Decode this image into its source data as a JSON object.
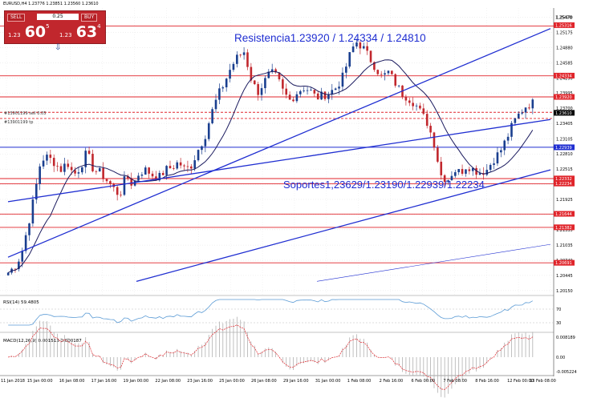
{
  "header": {
    "title": "EURUSD,H4  1.23776 1.23851 1.23560 1.23610"
  },
  "trade_panel": {
    "sell_label": "SELL",
    "buy_label": "BUY",
    "lot_value": "0.25",
    "sell_price_prefix": "1.23",
    "sell_price_big": "60",
    "sell_price_sup": "5",
    "buy_price_prefix": "1.23",
    "buy_price_big": "63",
    "buy_price_sup": "4"
  },
  "annotations": {
    "resistance": "Resistencia1.23920 / 1.24334 / 1.24810",
    "support": "Soportes1,23629/1.23190/1.22939/1.22234",
    "sell_order_label": "#13901199 sell 0.05",
    "tp_label": "#13901199 tp"
  },
  "colors": {
    "candle_bull": "#1a3f8f",
    "candle_bear": "#c1272d",
    "sma": "#1a1a5e",
    "trend_line": "#1f2ed1",
    "horizontal_red": "#e0252b",
    "horizontal_blue": "#1f2ed1",
    "rsi_line": "#5b9bd5",
    "macd_hist": "#b0b0b0",
    "macd_signal": "#e0252b",
    "price_label_bg": "#e0252b",
    "current_price_bg": "#000000"
  },
  "chart_data": [
    {
      "type": "candlestick",
      "symbol": "EURUSD",
      "timeframe": "H4",
      "ylim": [
        1.2007,
        1.2565
      ],
      "y_ticks": [
        "1.25470",
        "1.25175",
        "1.24880",
        "1.24585",
        "1.24290",
        "1.23995",
        "1.23700",
        "1.23405",
        "1.23105",
        "1.22810",
        "1.22515",
        "1.22220",
        "1.21925",
        "1.21630",
        "1.21335",
        "1.21035",
        "1.20740",
        "1.20445",
        "1.20150"
      ],
      "x_ticks": [
        "11 Jan 2018",
        "15 Jan 00:00",
        "16 Jan 08:00",
        "17 Jan 16:00",
        "19 Jan 00:00",
        "22 Jan 08:00",
        "23 Jan 16:00",
        "25 Jan 00:00",
        "26 Jan 08:00",
        "29 Jan 16:00",
        "31 Jan 00:00",
        "1 Feb 08:00",
        "2 Feb 16:00",
        "6 Feb 00:00",
        "7 Feb 08:00",
        "8 Feb 16:00",
        "12 Feb 00:00",
        "13 Feb 08:00"
      ],
      "close_path": [
        1.205,
        1.2062,
        1.2085,
        1.214,
        1.22,
        1.227,
        1.2275,
        1.2265,
        1.225,
        1.2265,
        1.224,
        1.2255,
        1.2285,
        1.225,
        1.2245,
        1.223,
        1.2215,
        1.22,
        1.224,
        1.222,
        1.2245,
        1.225,
        1.224,
        1.2235,
        1.225,
        1.2255,
        1.2265,
        1.225,
        1.226,
        1.229,
        1.2315,
        1.236,
        1.2395,
        1.242,
        1.245,
        1.247,
        1.248,
        1.243,
        1.24,
        1.242,
        1.244,
        1.243,
        1.24,
        1.2385,
        1.24,
        1.241,
        1.2405,
        1.239,
        1.2395,
        1.24,
        1.241,
        1.243,
        1.247,
        1.25,
        1.249,
        1.247,
        1.245,
        1.243,
        1.244,
        1.242,
        1.24,
        1.239,
        1.238,
        1.236,
        1.234,
        1.23,
        1.224,
        1.223,
        1.225,
        1.2245,
        1.226,
        1.225,
        1.2245,
        1.225,
        1.227,
        1.2285,
        1.231,
        1.234,
        1.236,
        1.2375,
        1.238
      ],
      "price_labels": [
        {
          "value": "1.25470",
          "bg": "none"
        },
        {
          "value": "1.25316",
          "bg": "red"
        },
        {
          "value": "1.24334",
          "bg": "red"
        },
        {
          "value": "1.23920",
          "bg": "red"
        },
        {
          "value": "1.23610",
          "bg": "black"
        },
        {
          "value": "1.22939",
          "bg": "blue"
        },
        {
          "value": "1.22332",
          "bg": "red"
        },
        {
          "value": "1.22234",
          "bg": "red"
        },
        {
          "value": "1.21644",
          "bg": "red"
        },
        {
          "value": "1.21382",
          "bg": "red"
        },
        {
          "value": "1.20691",
          "bg": "red"
        }
      ],
      "horizontal_levels": [
        {
          "value": 1.253,
          "color": "red"
        },
        {
          "value": 1.2433,
          "color": "red"
        },
        {
          "value": 1.2392,
          "color": "red"
        },
        {
          "value": 1.2362,
          "color": "red",
          "style": "dashed"
        },
        {
          "value": 1.235,
          "color": "red",
          "style": "dashed"
        },
        {
          "value": 1.2294,
          "color": "blue"
        },
        {
          "value": 1.2233,
          "color": "red"
        },
        {
          "value": 1.2223,
          "color": "red"
        },
        {
          "value": 1.2164,
          "color": "red"
        },
        {
          "value": 1.2138,
          "color": "red"
        },
        {
          "value": 1.2069,
          "color": "red"
        }
      ]
    },
    {
      "type": "line",
      "indicator": "RSI",
      "label": "RSI(14) 59.4805",
      "ticks": [
        "70",
        "30"
      ]
    },
    {
      "type": "bar",
      "indicator": "MACD",
      "label": "MACD(12,26,9) 0.001513 0.000187",
      "ticks": [
        "0.008189",
        "0.00",
        "-0.005224"
      ]
    }
  ]
}
